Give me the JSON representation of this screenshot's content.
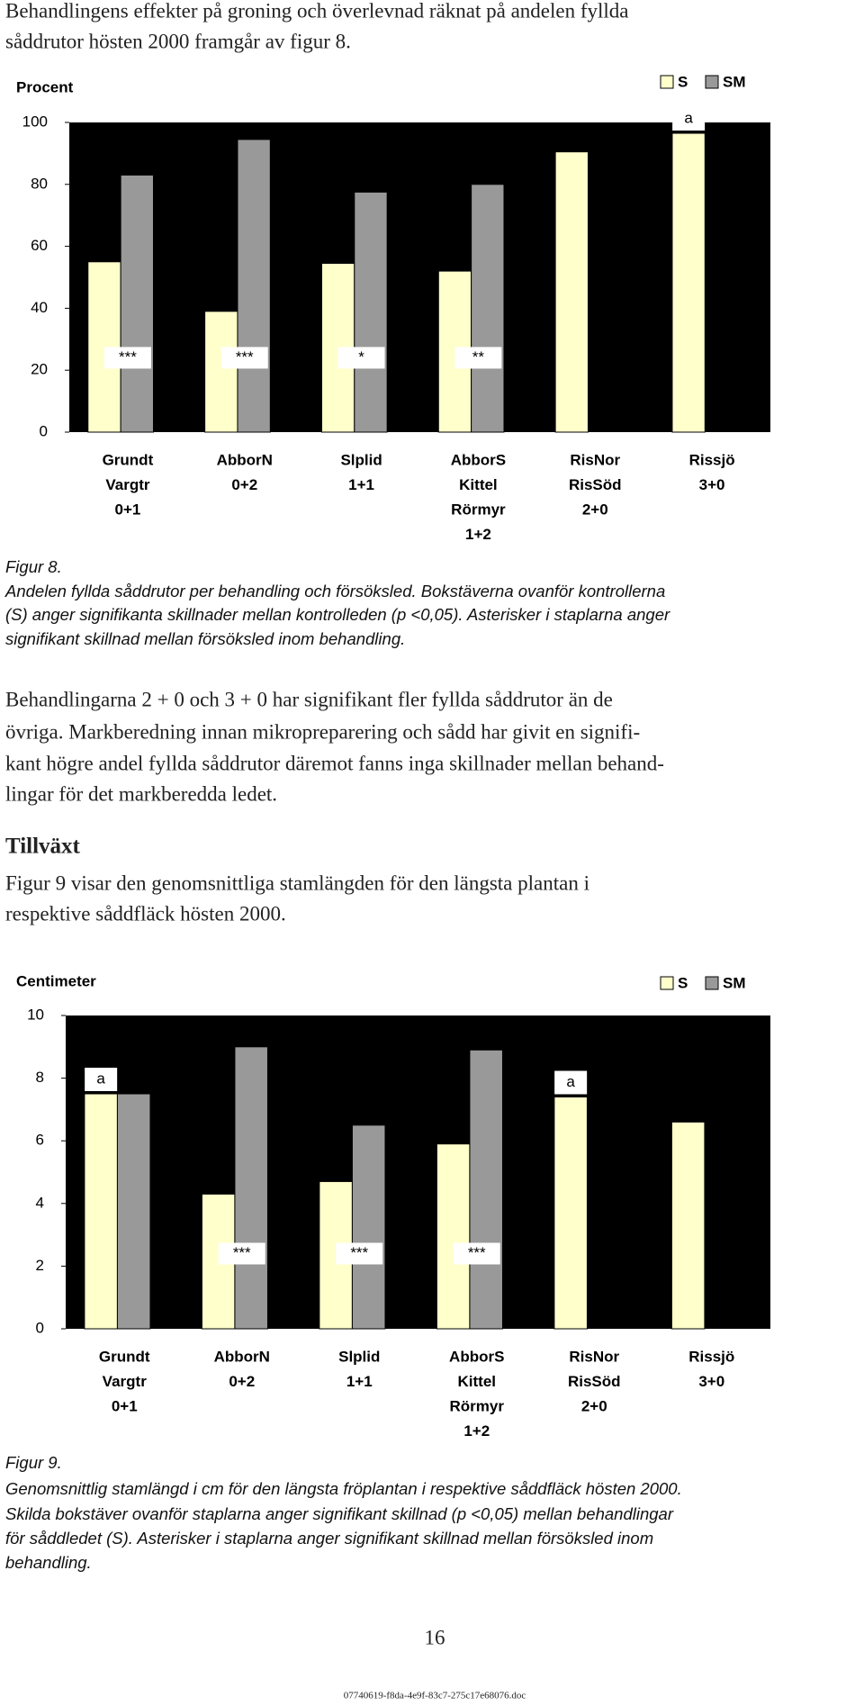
{
  "intro": [
    "Behandlingens effekter på groning och överlevnad räknat på andelen fyllda",
    "såddrutor hösten 2000 framgår av figur 8."
  ],
  "chart_data": [
    {
      "type": "bar",
      "y_label": "Procent",
      "categories": [
        [
          "Grundt",
          "Vargtr",
          "0+1"
        ],
        [
          "AbborN",
          "0+2"
        ],
        [
          "Slplid",
          "1+1"
        ],
        [
          "AbborS",
          "Kittel",
          "Rörmyr",
          "1+2"
        ],
        [
          "RisNor",
          "RisSöd",
          "2+0"
        ],
        [
          "Rissjö",
          "3+0"
        ]
      ],
      "series": [
        {
          "name": "S",
          "color": "#ffffcc",
          "values": [
            55,
            39,
            54.5,
            52,
            90.5,
            96.5
          ]
        },
        {
          "name": "SM",
          "color": "#999999",
          "values": [
            83,
            94.5,
            77.5,
            80,
            null,
            null
          ]
        }
      ],
      "bar_labels": [
        "***",
        "***",
        "*",
        "**",
        null,
        null
      ],
      "top_labels": [
        null,
        null,
        null,
        null,
        null,
        "a"
      ],
      "ylim": [
        0,
        100
      ],
      "yticks": [
        0,
        20,
        40,
        60,
        80,
        100
      ],
      "legend": "upper right",
      "background": "#000000"
    },
    {
      "type": "bar",
      "y_label": "Centimeter",
      "categories": [
        [
          "Grundt",
          "Vargtr",
          "0+1"
        ],
        [
          "AbborN",
          "0+2"
        ],
        [
          "Slplid",
          "1+1"
        ],
        [
          "AbborS",
          "Kittel",
          "Rörmyr",
          "1+2"
        ],
        [
          "RisNor",
          "RisSöd",
          "2+0"
        ],
        [
          "Rissjö",
          "3+0"
        ]
      ],
      "series": [
        {
          "name": "S",
          "color": "#ffffcc",
          "values": [
            7.5,
            4.3,
            4.7,
            5.9,
            7.4,
            6.6
          ]
        },
        {
          "name": "SM",
          "color": "#999999",
          "values": [
            7.5,
            9.0,
            6.5,
            8.9,
            null,
            null
          ]
        }
      ],
      "bar_labels": [
        null,
        "***",
        "***",
        "***",
        null,
        null
      ],
      "top_labels": [
        "a",
        null,
        null,
        null,
        "a",
        null
      ],
      "ylim": [
        0,
        10
      ],
      "yticks": [
        0,
        2,
        4,
        6,
        8,
        10
      ],
      "legend": "upper right",
      "background": "#000000"
    }
  ],
  "figure8_caption": {
    "label": "Figur 8.",
    "lines": [
      "Andelen fyllda såddrutor per behandling och försöksled. Bokstäverna ovanför kontrollerna",
      "(S) anger signifikanta skillnader mellan kontrolleden (p <0,05). Asterisker i staplarna anger",
      "signifikant skillnad mellan försöksled inom behandling."
    ]
  },
  "paragraph": [
    "Behandlingarna 2 + 0 och 3 + 0 har signifikant fler fyllda såddrutor än de",
    "övriga. Markberedning innan mikropreparering och sådd har givit en signifi-",
    "kant högre andel fyllda såddrutor däremot fanns inga skillnader mellan behand-",
    "lingar för det markberedda ledet."
  ],
  "heading": "Tillväxt",
  "paragraph2": [
    "Figur 9 visar den genomsnittliga stamlängden för den längsta plantan i",
    "respektive såddfläck hösten 2000."
  ],
  "figure9_caption": {
    "label": "Figur 9.",
    "lines": [
      "Genomsnittlig stamlängd i cm för den längsta fröplantan i respektive såddfläck hösten 2000.",
      "Skilda bokstäver ovanför staplarna anger signifikant skillnad (p <0,05) mellan behandlingar",
      "för såddledet (S). Asterisker i staplarna anger signifikant skillnad mellan försöksled inom",
      "behandling."
    ]
  },
  "page_number": "16",
  "footer": "07740619-f8da-4e9f-83c7-275c17e68076.doc"
}
